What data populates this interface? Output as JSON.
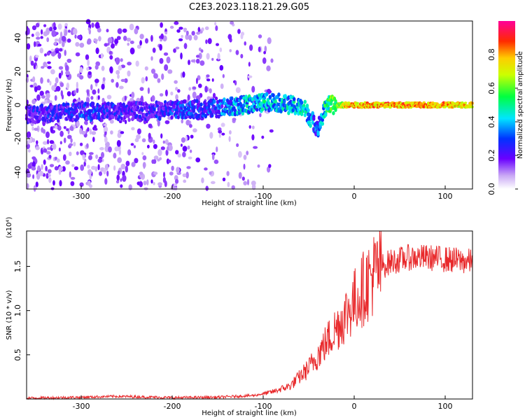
{
  "title": "C2E3.2023.118.21.29.G05",
  "chart_data": [
    {
      "type": "heatmap",
      "title": "C2E3.2023.118.21.29.G05",
      "xlabel": "Height of straight line (km)",
      "ylabel": "Frequency (Hz)",
      "xlim": [
        -360,
        130
      ],
      "ylim": [
        -50,
        50
      ],
      "x_ticks": [
        -300,
        -200,
        -100,
        0,
        100
      ],
      "y_ticks": [
        -40,
        -20,
        0,
        20,
        40
      ],
      "colorbar": {
        "label": "Normalized spectral amplitude",
        "range": [
          0.0,
          1.0
        ],
        "ticks": [
          0.0,
          0.2,
          0.4,
          0.6,
          0.8
        ],
        "colormap": "rainbow: white-violet-blue-cyan-green-yellow-red-magenta"
      },
      "ridge": [
        {
          "x": -340,
          "f": -5,
          "amp": 0.3
        },
        {
          "x": -300,
          "f": -4,
          "amp": 0.35
        },
        {
          "x": -250,
          "f": -4,
          "amp": 0.3
        },
        {
          "x": -200,
          "f": -3,
          "amp": 0.35
        },
        {
          "x": -150,
          "f": -2,
          "amp": 0.4
        },
        {
          "x": -120,
          "f": 0,
          "amp": 0.5
        },
        {
          "x": -90,
          "f": 2,
          "amp": 0.5
        },
        {
          "x": -70,
          "f": 0,
          "amp": 0.5
        },
        {
          "x": -55,
          "f": -2,
          "amp": 0.55
        },
        {
          "x": -40,
          "f": -14,
          "amp": 0.4
        },
        {
          "x": -30,
          "f": 0,
          "amp": 0.6
        },
        {
          "x": -10,
          "f": 0,
          "amp": 0.85
        },
        {
          "x": 0,
          "f": 0,
          "amp": 0.9
        },
        {
          "x": 50,
          "f": 0,
          "amp": 0.9
        },
        {
          "x": 100,
          "f": 0,
          "amp": 0.9
        },
        {
          "x": 130,
          "f": 0,
          "amp": 0.85
        }
      ],
      "noise_extent_x": [
        -360,
        -90
      ],
      "grid": false,
      "legend": "colorbar on right"
    },
    {
      "type": "line",
      "xlabel": "Height of straight line (km)",
      "ylabel": "SNR (10 * v/v)",
      "y_multiplier": "(x10⁴)",
      "xlim": [
        -360,
        130
      ],
      "ylim": [
        0,
        19000
      ],
      "x_ticks": [
        -300,
        -200,
        -100,
        0,
        100
      ],
      "y_ticks": [
        5000,
        10000,
        15000
      ],
      "y_tick_labels": [
        "0.5",
        "1.0",
        "1.5"
      ],
      "color": "#e8292b",
      "x": [
        -360,
        -300,
        -260,
        -200,
        -150,
        -110,
        -90,
        -70,
        -60,
        -50,
        -40,
        -30,
        -20,
        -10,
        0,
        10,
        20,
        30,
        40,
        60,
        80,
        100,
        130
      ],
      "values": [
        100,
        200,
        300,
        150,
        200,
        400,
        800,
        1500,
        2500,
        3500,
        5000,
        6500,
        8000,
        9500,
        11000,
        12500,
        14000,
        15000,
        15500,
        16000,
        16000,
        15800,
        15500
      ],
      "grid": false
    }
  ]
}
